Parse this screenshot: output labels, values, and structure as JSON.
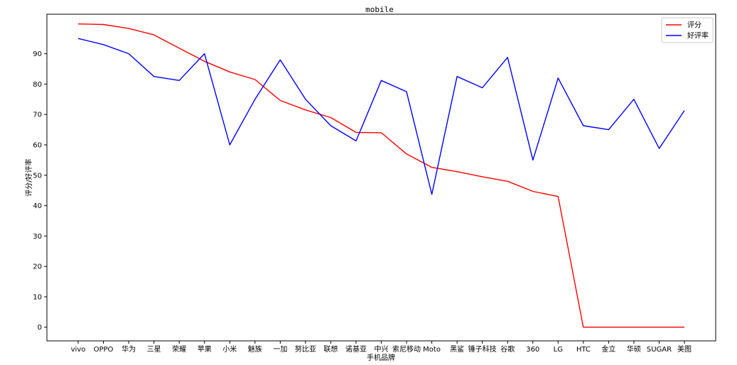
{
  "chart_data": {
    "type": "line",
    "title": "mobile",
    "xlabel": "手机品牌",
    "ylabel": "评分/好评率",
    "categories": [
      "vivo",
      "OPPO",
      "华为",
      "三星",
      "荣耀",
      "苹果",
      "小米",
      "魅族",
      "一加",
      "努比亚",
      "联想",
      "诺基亚",
      "中兴",
      "索尼移动",
      "Moto",
      "黑鲨",
      "锤子科技",
      "谷歌",
      "360",
      "LG",
      "HTC",
      "金立",
      "华硕",
      "SUGAR",
      "美图"
    ],
    "yticks": [
      0,
      10,
      20,
      30,
      40,
      50,
      60,
      70,
      80,
      90
    ],
    "ylim": [
      -4.5,
      103
    ],
    "grid": false,
    "legend_position": "top-right",
    "series": [
      {
        "name": "评分",
        "color": "#ff0000",
        "values": [
          99.8,
          99.6,
          98.3,
          96.2,
          91.8,
          87.5,
          84.0,
          81.5,
          74.6,
          71.5,
          69.0,
          64.1,
          64.0,
          57.0,
          52.6,
          51.2,
          49.5,
          48.0,
          44.7,
          43.0,
          0,
          0,
          0,
          0,
          0
        ]
      },
      {
        "name": "好评率",
        "color": "#0000ff",
        "values": [
          95.0,
          93.0,
          90.0,
          82.5,
          81.2,
          90.0,
          60.0,
          75.0,
          88.0,
          75.0,
          66.3,
          61.3,
          81.2,
          77.5,
          43.7,
          82.5,
          78.8,
          88.8,
          55.0,
          82.0,
          66.3,
          65.0,
          75.0,
          58.8,
          71.3
        ]
      }
    ]
  }
}
